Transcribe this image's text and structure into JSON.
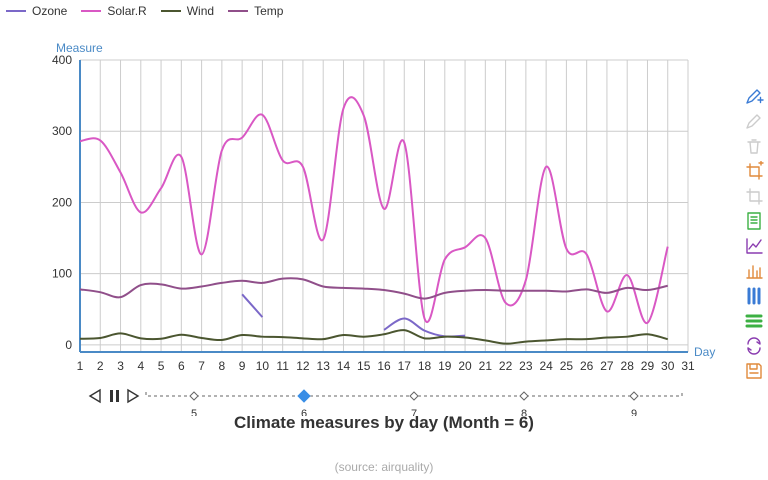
{
  "chart_data": {
    "type": "line",
    "title": "Climate measures by day (Month = 6)",
    "subtitle": "(source: airquality)",
    "xlabel": "Day",
    "ylabel": "Measure",
    "x": [
      1,
      2,
      3,
      4,
      5,
      6,
      7,
      8,
      9,
      10,
      11,
      12,
      13,
      14,
      15,
      16,
      17,
      18,
      19,
      20,
      21,
      22,
      23,
      24,
      25,
      26,
      27,
      28,
      29,
      30
    ],
    "x_ticks": [
      1,
      2,
      3,
      4,
      5,
      6,
      7,
      8,
      9,
      10,
      11,
      12,
      13,
      14,
      15,
      16,
      17,
      18,
      19,
      20,
      21,
      22,
      23,
      24,
      25,
      26,
      27,
      28,
      29,
      30,
      31
    ],
    "y_ticks": [
      0,
      100,
      200,
      300,
      400
    ],
    "xlim": [
      1,
      31
    ],
    "ylim": [
      -10,
      400
    ],
    "grid": true,
    "legend_position": "top-left",
    "series": [
      {
        "name": "Ozone",
        "color": "#7b68c8",
        "values": [
          null,
          null,
          null,
          null,
          null,
          null,
          null,
          null,
          71,
          39,
          null,
          null,
          null,
          null,
          null,
          21,
          37,
          20,
          12,
          13,
          null,
          null,
          null,
          null,
          null,
          null,
          null,
          null,
          null,
          null
        ]
      },
      {
        "name": "Solar.R",
        "color": "#d958c4",
        "values": [
          286,
          287,
          242,
          186,
          220,
          264,
          127,
          273,
          291,
          323,
          259,
          250,
          148,
          332,
          322,
          191,
          284,
          37,
          120,
          137,
          150,
          59,
          91,
          250,
          135,
          127,
          47,
          98,
          31,
          138
        ]
      },
      {
        "name": "Wind",
        "color": "#4b5630",
        "values": [
          8.6,
          9.7,
          16.1,
          9.2,
          8.6,
          14.3,
          9.7,
          6.9,
          13.8,
          11.5,
          10.9,
          9.2,
          8.0,
          13.8,
          11.5,
          14.9,
          20.7,
          9.2,
          11.5,
          10.3,
          6.3,
          1.7,
          4.6,
          6.3,
          8.0,
          8.0,
          10.3,
          11.5,
          14.9,
          8.0
        ]
      },
      {
        "name": "Temp",
        "color": "#904f8a",
        "values": [
          78,
          74,
          67,
          84,
          85,
          79,
          82,
          87,
          90,
          87,
          93,
          92,
          82,
          80,
          79,
          77,
          72,
          65,
          73,
          76,
          77,
          76,
          76,
          76,
          75,
          78,
          73,
          80,
          77,
          83
        ]
      }
    ]
  },
  "timeline": {
    "labels": [
      "5",
      "6",
      "7",
      "8",
      "9"
    ],
    "current": "6"
  },
  "toolbox": {
    "tools": [
      {
        "icon": "pencil-plus-icon",
        "color": "#3a7bd5"
      },
      {
        "icon": "pencil-icon",
        "color": "#cccccc"
      },
      {
        "icon": "trash-icon",
        "color": "#cccccc"
      },
      {
        "icon": "crop-add-icon",
        "color": "#e08a3c"
      },
      {
        "icon": "crop-icon",
        "color": "#cccccc"
      },
      {
        "icon": "data-view-icon",
        "color": "#3cb043"
      },
      {
        "icon": "line-chart-icon",
        "color": "#8a3cb0"
      },
      {
        "icon": "bar-chart-icon",
        "color": "#e08a3c"
      },
      {
        "icon": "stack-vertical-icon",
        "color": "#3a7bd5"
      },
      {
        "icon": "stack-horizontal-icon",
        "color": "#3cb043"
      },
      {
        "icon": "refresh-icon",
        "color": "#8a3cb0"
      },
      {
        "icon": "save-icon",
        "color": "#e08a3c"
      }
    ]
  }
}
